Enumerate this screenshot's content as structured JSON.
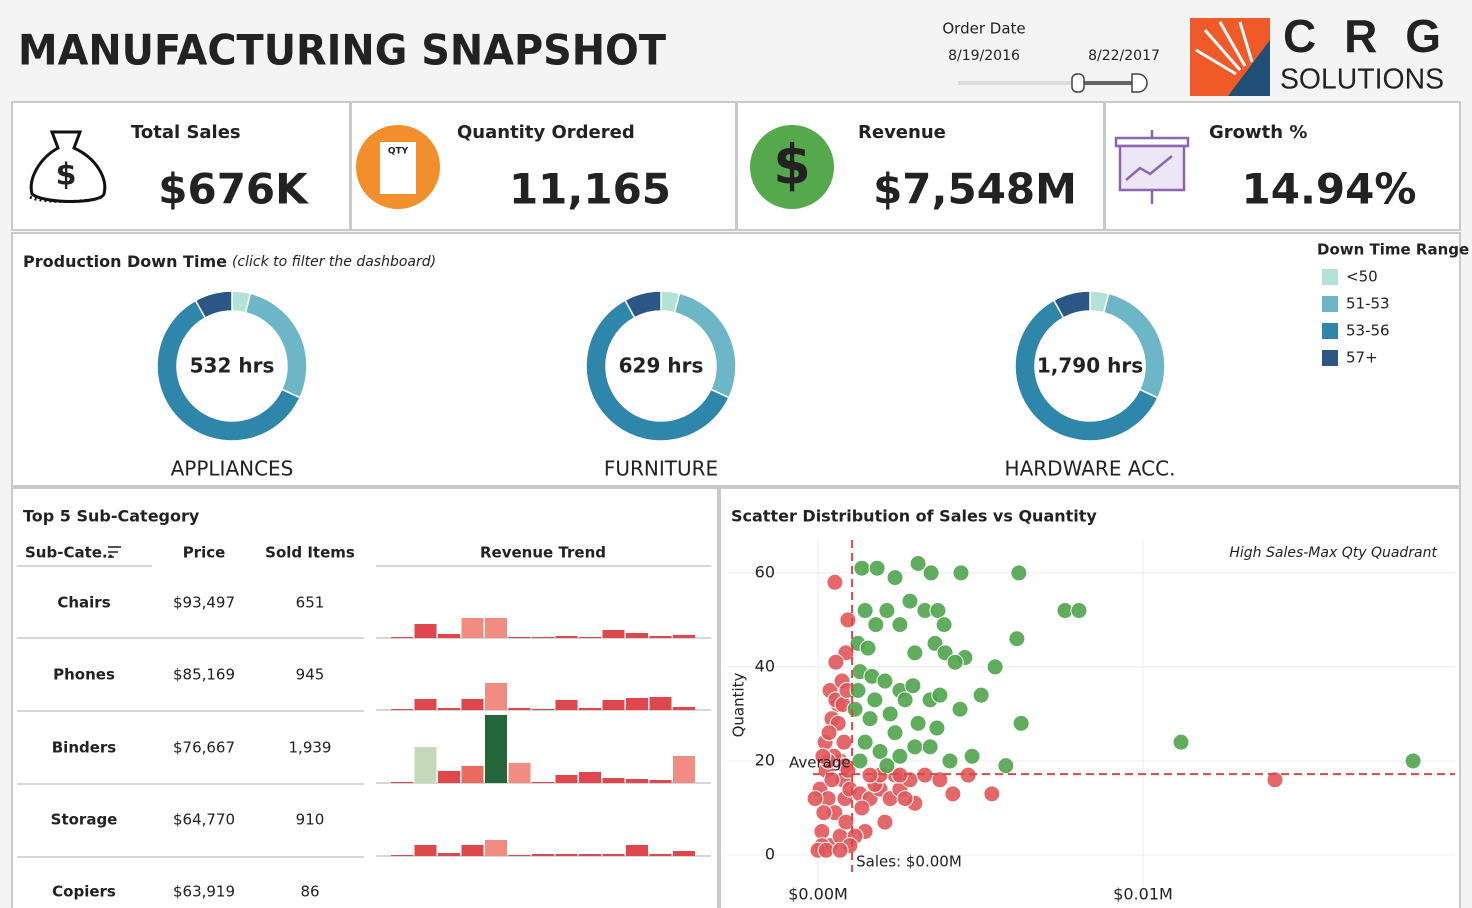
{
  "header": {
    "title": "MANUFACTURING SNAPSHOT",
    "filter_label": "Order Date",
    "date_start": "8/19/2016",
    "date_end": "8/22/2017",
    "logo_letters": "C R G",
    "logo_sub": "SOLUTIONS"
  },
  "kpis": [
    {
      "label": "Total Sales",
      "value": "$676K",
      "icon_text": "$"
    },
    {
      "label": "Quantity Ordered",
      "value": "11,165",
      "icon_text": "QTY"
    },
    {
      "label": "Revenue",
      "value": "$7,548M",
      "icon_text": "$"
    },
    {
      "label": "Growth %",
      "value": "14.94%"
    }
  ],
  "table": {
    "title": "Top 5 Sub-Category",
    "columns": [
      "Sub-Cate..",
      "Price",
      "Sold Items",
      "Revenue Trend"
    ],
    "rows": [
      [
        "Chairs",
        "$93,497",
        "651"
      ],
      [
        "Phones",
        "$85,169",
        "945"
      ],
      [
        "Binders",
        "$76,667",
        "1,939"
      ],
      [
        "Storage",
        "$64,770",
        "910"
      ],
      [
        "Copiers",
        "$63,919",
        "86"
      ]
    ]
  },
  "chart_data": [
    {
      "type": "donut",
      "title": "Production Down Time",
      "subtitle": "(click to filter the dashboard)",
      "legend_title": "Down Time Range",
      "categories": [
        "APPLIANCES",
        "FURNITURE",
        "HARDWARE ACC."
      ],
      "series": [
        {
          "name": "<50",
          "color": "#b5e2d6",
          "values": [
            21,
            25,
            72
          ]
        },
        {
          "name": "51-53",
          "color": "#6db6c8",
          "values": [
            149,
            176,
            501
          ]
        },
        {
          "name": "53-56",
          "color": "#2f86ab",
          "values": [
            319,
            378,
            1074
          ]
        },
        {
          "name": "57+",
          "color": "#2a5785",
          "values": [
            43,
            50,
            143
          ]
        }
      ],
      "totals": [
        {
          "value": 532,
          "label": "532 hrs"
        },
        {
          "value": 629,
          "label": "629 hrs"
        },
        {
          "value": 1790,
          "label": "1,790 hrs"
        }
      ]
    },
    {
      "type": "bar",
      "categories": [
        null,
        null,
        null,
        null,
        null,
        null,
        null,
        null,
        null,
        null,
        null,
        null,
        null
      ],
      "series": [
        {
          "values": [
            1,
            14,
            4,
            20,
            20,
            1,
            1,
            2,
            1,
            8,
            5,
            2,
            3
          ],
          "colors": [
            "#e0474c",
            "#e0474c",
            "#e0474c",
            "#f28b82",
            "#f28b82",
            "#e0474c",
            "#e0474c",
            "#e0474c",
            "#e0474c",
            "#e0474c",
            "#e0474c",
            "#e0474c",
            "#e0474c"
          ]
        },
        {
          "values": [
            1,
            11,
            2,
            11,
            27,
            2,
            1,
            10,
            2,
            10,
            12,
            13,
            3
          ],
          "colors": [
            "#e0474c",
            "#e0474c",
            "#e0474c",
            "#e0474c",
            "#f28b82",
            "#e0474c",
            "#e0474c",
            "#e0474c",
            "#e0474c",
            "#e0474c",
            "#e0474c",
            "#e0474c",
            "#e0474c"
          ]
        },
        {
          "values": [
            1,
            36,
            12,
            17,
            68,
            20,
            1,
            8,
            11,
            5,
            4,
            3,
            27
          ],
          "colors": [
            "#e0474c",
            "#c5d8b8",
            "#e0474c",
            "#ea6a5e",
            "#22663a",
            "#f28b82",
            "#e0474c",
            "#e0474c",
            "#e0474c",
            "#e0474c",
            "#e0474c",
            "#e0474c",
            "#f28b82"
          ]
        },
        {
          "values": [
            1,
            11,
            3,
            11,
            16,
            1,
            2,
            2,
            2,
            2,
            11,
            2,
            5
          ],
          "colors": [
            "#e0474c",
            "#e0474c",
            "#e0474c",
            "#e0474c",
            "#f28b82",
            "#e0474c",
            "#e0474c",
            "#e0474c",
            "#e0474c",
            "#e0474c",
            "#e0474c",
            "#e0474c",
            "#e0474c"
          ]
        }
      ]
    },
    {
      "type": "scatter",
      "title": "Scatter Distribution of Sales vs Quantity",
      "annotation": "High Sales-Max Qty Quadrant",
      "ylabel": "Quantity",
      "xlim": [
        -0.0028,
        0.0196
      ],
      "ylim": [
        -10,
        67
      ],
      "xticks": [
        {
          "value": 0,
          "label": "$0.00M"
        },
        {
          "value": 0.01,
          "label": "$0.01M"
        }
      ],
      "yticks": [
        0,
        20,
        40,
        60
      ],
      "grid": true,
      "reference_lines": [
        {
          "axis": "y",
          "value": 17.2,
          "label": "Average"
        },
        {
          "axis": "x",
          "value": 0.00105,
          "label": "Sales: $0.00M"
        }
      ],
      "series": [
        {
          "color": "#e15759",
          "x": [
            0.00052,
            0.00037,
            0.00062,
            0.00043,
            0.00022,
            0.00068,
            6e-05,
            0.00031,
            0.00052,
            0.00012,
            0.00037,
            0.00068,
            0.00083,
            0.00077,
            0.00025,
            0.00049,
            0.0008,
            0.00062,
            0.00074,
            0.00086,
            0.00092,
            0.00055,
            0.00031,
            0.00018,
            0.00043,
            0.00086,
            0.00098,
            0.00129,
            0.0016,
            0.00191,
            0.00222,
            0.00206,
            0.00145,
            0.00175,
            0.00252,
            0.00283,
            0.00298,
            0.00268,
            0.00329,
            0.00375,
            0.00415,
            0.00462,
            0.00535,
            0.01406,
            0.00237,
            0.00135,
            0.00114,
            0.00098,
            0.00012,
            0.00083,
            0.00191,
            0.00252,
            0.0016,
            0,
            0.00025,
            0.00068,
            -9e-05,
            0.00055,
            0.00034,
            0.00077,
            0.00089,
            0.00015,
            0.00092
          ],
          "values": [
            58,
            35,
            32,
            29,
            24,
            20,
            14,
            12,
            9,
            5,
            2,
            4,
            12,
            16,
            18,
            21,
            24,
            28,
            37,
            43,
            50,
            41,
            20,
            9,
            16,
            7,
            14,
            13,
            12,
            14,
            12,
            7,
            5,
            15,
            14,
            16,
            11,
            12,
            17,
            16,
            13,
            17,
            13,
            16,
            17,
            10,
            4,
            2,
            2,
            19,
            17,
            17,
            17,
            1,
            1,
            1,
            12,
            33,
            26,
            32,
            35,
            21,
            18
          ]
        },
        {
          "color": "#4ea44b",
          "x": [
            0.00135,
            0.00182,
            0.00237,
            0.00308,
            0.00348,
            0.0044,
            0.00618,
            0.00145,
            0.00212,
            0.00283,
            0.00329,
            0.00178,
            0.00252,
            0.00369,
            0.00388,
            0.00123,
            0.00154,
            0.0036,
            0.00452,
            0.00612,
            0.0076,
            0.00803,
            0.00298,
            0.00391,
            0.00422,
            0.00545,
            0.00129,
            0.00166,
            0.00206,
            0.00252,
            0.00292,
            0.00345,
            0.00375,
            0.00502,
            0.00437,
            0.00123,
            0.00175,
            0.00222,
            0.00268,
            0.00308,
            0.00366,
            0.00625,
            0.00145,
            0.00191,
            0.00252,
            0.00298,
            0.00345,
            0.00406,
            0.00474,
            0.00578,
            0.01117,
            0.01831,
            0.00129,
            0.00212,
            0.00114,
            0.0016,
            0.00237
          ],
          "values": [
            61,
            61,
            59,
            62,
            60,
            60,
            60,
            52,
            52,
            54,
            52,
            49,
            49,
            52,
            49,
            45,
            44,
            45,
            42,
            46,
            52,
            52,
            43,
            43,
            41,
            40,
            39,
            38,
            37,
            35,
            36,
            33,
            34,
            34,
            31,
            35,
            33,
            30,
            33,
            28,
            27,
            28,
            24,
            22,
            21,
            23,
            23,
            20,
            21,
            19,
            24,
            20,
            20,
            19,
            31,
            29,
            26
          ]
        }
      ]
    }
  ]
}
